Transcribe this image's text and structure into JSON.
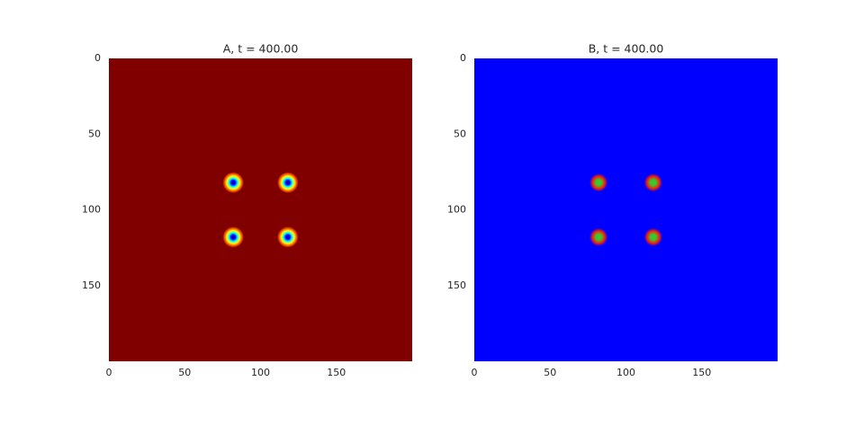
{
  "chart_data": [
    {
      "type": "image",
      "title": "A, t = 400.00",
      "xlim": [
        0,
        200
      ],
      "ylim": [
        200,
        0
      ],
      "xticks": [
        0,
        50,
        100,
        150
      ],
      "yticks": [
        0,
        50,
        100,
        150
      ],
      "color": "#800000",
      "spot_colors": [
        "#00007f",
        "#0000ff",
        "#00ffff",
        "#ffff00",
        "#ff6000",
        "#800000"
      ],
      "spots": [
        {
          "x": 82,
          "y": 82
        },
        {
          "x": 118,
          "y": 82
        },
        {
          "x": 82,
          "y": 118
        },
        {
          "x": 118,
          "y": 118
        }
      ]
    },
    {
      "type": "image",
      "title": "B, t = 400.00",
      "xlim": [
        0,
        200
      ],
      "ylim": [
        200,
        0
      ],
      "xticks": [
        0,
        50,
        100,
        150
      ],
      "yticks": [
        0,
        50,
        100,
        150
      ],
      "color": "#0000ff",
      "spot_colors": [
        "#30d030",
        "#40c030",
        "#ff2000",
        "#0000ff"
      ],
      "spots": [
        {
          "x": 82,
          "y": 82
        },
        {
          "x": 118,
          "y": 82
        },
        {
          "x": 82,
          "y": 118
        },
        {
          "x": 118,
          "y": 118
        }
      ]
    }
  ]
}
